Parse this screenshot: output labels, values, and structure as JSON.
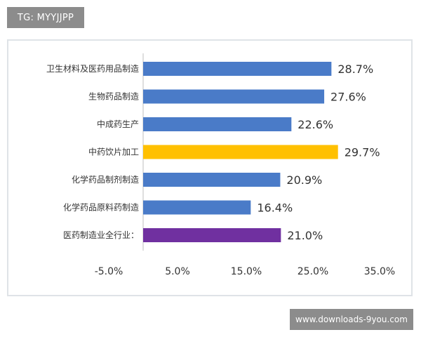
{
  "watermark_top": "TG: MYYJJPP",
  "watermark_bottom": "www.downloads-9you.com",
  "chart_data": {
    "type": "bar",
    "orientation": "horizontal",
    "categories": [
      "卫生材料及医药用品制造",
      "生物药品制造",
      "中成药生产",
      "中药饮片加工",
      "化学药品制剂制造",
      "化学药品原料药制造",
      "医药制造业全行业："
    ],
    "values": [
      28.7,
      27.6,
      22.6,
      29.7,
      20.9,
      16.4,
      21.0
    ],
    "value_labels": [
      "28.7%",
      "27.6%",
      "22.6%",
      "29.7%",
      "20.9%",
      "16.4%",
      "21.0%"
    ],
    "colors": [
      "#4a7bc8",
      "#4a7bc8",
      "#4a7bc8",
      "#ffc000",
      "#4a7bc8",
      "#4a7bc8",
      "#7030a0"
    ],
    "x_ticks": [
      "-5.0%",
      "5.0%",
      "15.0%",
      "25.0%",
      "35.0%"
    ],
    "tick_values": [
      -5,
      5,
      15,
      25,
      35
    ],
    "xlim": [
      -5,
      35
    ],
    "grid": false,
    "legend": "none"
  }
}
